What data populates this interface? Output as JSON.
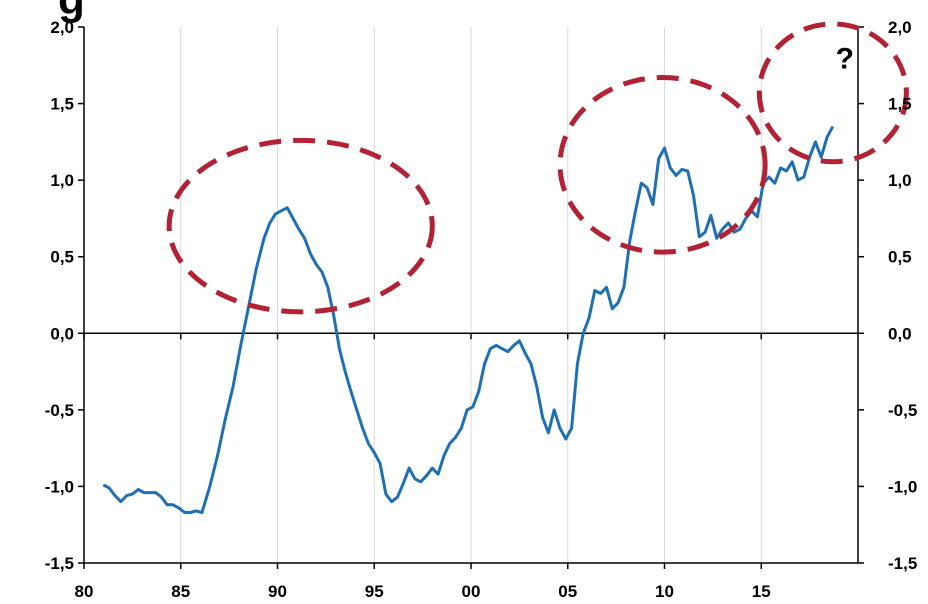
{
  "chart_data": {
    "type": "line",
    "title_fragment": "g",
    "xlabel": "",
    "ylabel": "",
    "x_ticks": [
      "80",
      "85",
      "90",
      "95",
      "00",
      "05",
      "10",
      "15"
    ],
    "y_ticks": [
      "-1,5",
      "-1,0",
      "-0,5",
      "0,0",
      "0,5",
      "1,0",
      "1,5",
      "2,0"
    ],
    "xlim": [
      1980,
      2020
    ],
    "ylim": [
      -1.5,
      2.0
    ],
    "zero_line": true,
    "grid": "vertical",
    "series": [
      {
        "color": "#1f6fb5",
        "x": [
          1981.0,
          1981.3,
          1981.6,
          1981.9,
          1982.2,
          1982.5,
          1982.8,
          1983.1,
          1983.4,
          1983.7,
          1984.0,
          1984.3,
          1984.6,
          1984.9,
          1985.2,
          1985.5,
          1985.8,
          1986.1,
          1986.5,
          1986.9,
          1987.3,
          1987.7,
          1988.1,
          1988.5,
          1988.9,
          1989.3,
          1989.6,
          1989.9,
          1990.2,
          1990.5,
          1990.8,
          1991.1,
          1991.4,
          1991.7,
          1992.0,
          1992.3,
          1992.6,
          1992.9,
          1993.2,
          1993.5,
          1993.8,
          1994.1,
          1994.4,
          1994.7,
          1995.0,
          1995.3,
          1995.6,
          1995.9,
          1996.2,
          1996.5,
          1996.8,
          1997.1,
          1997.4,
          1997.7,
          1998.0,
          1998.3,
          1998.6,
          1998.9,
          1999.2,
          1999.5,
          1999.8,
          2000.1,
          2000.4,
          2000.7,
          2001.0,
          2001.3,
          2001.6,
          2001.9,
          2002.2,
          2002.5,
          2002.8,
          2003.1,
          2003.4,
          2003.7,
          2004.0,
          2004.3,
          2004.6,
          2004.9,
          2005.2,
          2005.5,
          2005.8,
          2006.1,
          2006.4,
          2006.7,
          2007.0,
          2007.3,
          2007.6,
          2007.9,
          2008.2,
          2008.5,
          2008.8,
          2009.1,
          2009.4,
          2009.7,
          2010.0,
          2010.3,
          2010.6,
          2010.9,
          2011.2,
          2011.5,
          2011.8,
          2012.1,
          2012.4,
          2012.7,
          2013.0,
          2013.3,
          2013.6,
          2013.9,
          2014.2,
          2014.5,
          2014.8,
          2015.1,
          2015.4,
          2015.7,
          2016.0,
          2016.3,
          2016.6,
          2016.9,
          2017.2,
          2017.5,
          2017.8,
          2018.1,
          2018.4,
          2018.7
        ],
        "y": [
          -0.99,
          -1.01,
          -1.06,
          -1.1,
          -1.06,
          -1.05,
          -1.02,
          -1.04,
          -1.04,
          -1.04,
          -1.07,
          -1.12,
          -1.12,
          -1.14,
          -1.17,
          -1.17,
          -1.16,
          -1.17,
          -1.0,
          -0.8,
          -0.56,
          -0.35,
          -0.08,
          0.17,
          0.42,
          0.62,
          0.72,
          0.78,
          0.8,
          0.82,
          0.75,
          0.68,
          0.62,
          0.52,
          0.45,
          0.4,
          0.3,
          0.12,
          -0.1,
          -0.25,
          -0.38,
          -0.5,
          -0.62,
          -0.72,
          -0.78,
          -0.85,
          -1.05,
          -1.1,
          -1.07,
          -0.98,
          -0.88,
          -0.95,
          -0.97,
          -0.93,
          -0.88,
          -0.92,
          -0.8,
          -0.72,
          -0.68,
          -0.62,
          -0.5,
          -0.48,
          -0.38,
          -0.2,
          -0.1,
          -0.08,
          -0.1,
          -0.12,
          -0.08,
          -0.05,
          -0.13,
          -0.2,
          -0.35,
          -0.55,
          -0.65,
          -0.5,
          -0.62,
          -0.69,
          -0.62,
          -0.2,
          0.0,
          0.1,
          0.28,
          0.26,
          0.3,
          0.16,
          0.2,
          0.3,
          0.6,
          0.8,
          0.98,
          0.95,
          0.84,
          1.14,
          1.21,
          1.08,
          1.03,
          1.07,
          1.06,
          0.9,
          0.63,
          0.66,
          0.77,
          0.62,
          0.68,
          0.72,
          0.66,
          0.68,
          0.75,
          0.8,
          0.76,
          0.98,
          1.02,
          0.98,
          1.08,
          1.06,
          1.12,
          1.0,
          1.02,
          1.15,
          1.25,
          1.15,
          1.28,
          1.35
        ]
      }
    ],
    "annotations": [
      {
        "type": "dashed-ellipse",
        "cx": 1991.2,
        "cy": 0.7,
        "rx": 6.8,
        "ry": 0.56,
        "color": "#b22234"
      },
      {
        "type": "dashed-ellipse",
        "cx": 2009.9,
        "cy": 1.1,
        "rx": 5.3,
        "ry": 0.57,
        "color": "#b22234"
      },
      {
        "type": "dashed-ellipse",
        "cx": 2018.7,
        "cy": 1.57,
        "rx": 3.8,
        "ry": 0.45,
        "color": "#b22234",
        "text": "?"
      }
    ],
    "colors": {
      "line": "#1f6fb5",
      "callout": "#b22234",
      "grid": "#d9d9d9",
      "axis": "#000000"
    }
  }
}
